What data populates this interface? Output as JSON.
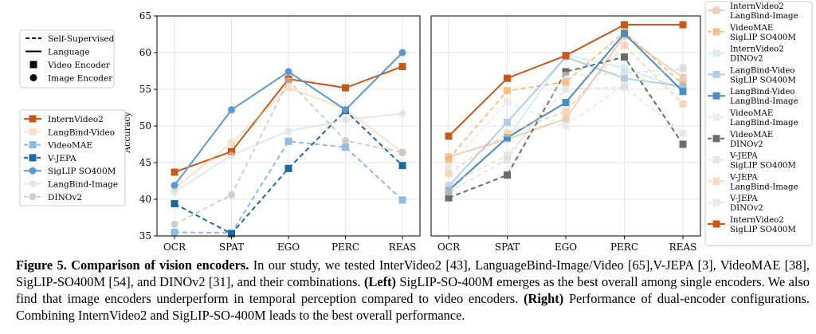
{
  "chart_data": [
    {
      "type": "line",
      "panel": "left",
      "categories": [
        "OCR",
        "SPAT",
        "EGO",
        "PERC",
        "REAS"
      ],
      "ylabel": "Accuracy",
      "ylim": [
        35,
        65
      ],
      "yticks": [
        35,
        40,
        45,
        50,
        55,
        60,
        65
      ],
      "grid": true,
      "style_legend": [
        {
          "label": "Self-Supervised",
          "kind": "dashed"
        },
        {
          "label": "Language",
          "kind": "solid"
        },
        {
          "label": "Video Encoder",
          "kind": "square"
        },
        {
          "label": "Image Encoder",
          "kind": "circle"
        }
      ],
      "series": [
        {
          "name": "InternVideo2",
          "values": [
            43.7,
            46.5,
            56.4,
            55.2,
            58.1
          ],
          "color": "#c8581a",
          "dash": false,
          "marker": "square",
          "alpha": 1.0
        },
        {
          "name": "LangBind-Video",
          "values": [
            41.5,
            47.7,
            55.2,
            52.3,
            46.4
          ],
          "color": "#f6be8a",
          "dash": false,
          "marker": "square",
          "alpha": 0.45
        },
        {
          "name": "VideoMAE",
          "values": [
            35.5,
            35.4,
            47.9,
            47.1,
            39.9
          ],
          "color": "#8fbbe2",
          "dash": true,
          "marker": "square",
          "alpha": 1.0
        },
        {
          "name": "V-JEPA",
          "values": [
            39.4,
            35.3,
            44.2,
            52.1,
            44.6
          ],
          "color": "#1b6a9d",
          "dash": true,
          "marker": "square",
          "alpha": 1.0
        },
        {
          "name": "SigLIP SO400M",
          "values": [
            41.9,
            52.2,
            57.4,
            52.2,
            60.0
          ],
          "color": "#5a9bcf",
          "dash": false,
          "marker": "circle",
          "alpha": 1.0
        },
        {
          "name": "LangBind-Image",
          "values": [
            41.0,
            46.0,
            49.3,
            50.8,
            51.7
          ],
          "color": "#d9d9d9",
          "dash": false,
          "marker": "circle",
          "alpha": 0.6
        },
        {
          "name": "DINOv2",
          "values": [
            36.6,
            40.6,
            56.2,
            48.0,
            46.4
          ],
          "color": "#bdbdbd",
          "dash": true,
          "marker": "circle",
          "alpha": 0.7
        }
      ]
    },
    {
      "type": "line",
      "panel": "right",
      "categories": [
        "OCR",
        "SPAT",
        "EGO",
        "PERC",
        "REAS"
      ],
      "ylim": [
        35,
        65
      ],
      "grid": true,
      "series": [
        {
          "name": "InternVideo2 LangBind-Image",
          "label_lines": [
            "InternVideo2",
            "LangBind-Image"
          ],
          "values": [
            45.8,
            48.2,
            51.0,
            62.3,
            56.6
          ],
          "color": "#e8a57d",
          "dash": false,
          "alpha": 0.55
        },
        {
          "name": "VideoMAE SigLIP SO400M",
          "label_lines": [
            "VideoMAE",
            "SigLIP SO400M"
          ],
          "values": [
            45.5,
            54.8,
            56.0,
            62.8,
            55.7
          ],
          "color": "#f6ad60",
          "dash": true,
          "alpha": 0.75
        },
        {
          "name": "InternVideo2 DINOv2",
          "label_lines": [
            "InternVideo2",
            "DINOv2"
          ],
          "values": [
            41.5,
            48.3,
            59.7,
            57.9,
            55.0
          ],
          "color": "#c5ddf2",
          "dash": false,
          "alpha": 0.6
        },
        {
          "name": "LangBind-Video SigLIP SO400M",
          "label_lines": [
            "LangBind-Video",
            "SigLIP SO400M"
          ],
          "values": [
            41.8,
            50.5,
            59.4,
            56.5,
            55.4
          ],
          "color": "#8fbbe2",
          "dash": false,
          "alpha": 0.7
        },
        {
          "name": "LangBind-Video LangBind-Image",
          "label_lines": [
            "LangBind-Video",
            "LangBind-Image"
          ],
          "values": [
            41.2,
            48.4,
            53.2,
            62.6,
            54.7
          ],
          "color": "#4a8cc7",
          "dash": false,
          "alpha": 1.0
        },
        {
          "name": "VideoMAE LangBind-Image",
          "label_lines": [
            "VideoMAE",
            "LangBind-Image"
          ],
          "values": [
            44.5,
            53.3,
            50.0,
            55.6,
            58.0
          ],
          "color": "#e0e0e0",
          "dash": true,
          "alpha": 0.6
        },
        {
          "name": "VideoMAE DINOv2",
          "label_lines": [
            "VideoMAE",
            "DINOv2"
          ],
          "values": [
            40.2,
            43.3,
            57.4,
            59.4,
            47.5
          ],
          "color": "#6b6b6b",
          "dash": true,
          "alpha": 1.0
        },
        {
          "name": "V-JEPA SigLIP SO400M",
          "label_lines": [
            "V-JEPA",
            "SigLIP SO400M"
          ],
          "values": [
            41.0,
            45.4,
            56.9,
            57.2,
            57.8
          ],
          "color": "#d6d6d6",
          "dash": true,
          "alpha": 0.6
        },
        {
          "name": "V-JEPA LangBind-Image",
          "label_lines": [
            "V-JEPA",
            "LangBind-Image"
          ],
          "values": [
            43.5,
            49.0,
            52.0,
            61.0,
            53.0
          ],
          "color": "#f8c596",
          "dash": true,
          "alpha": 0.65
        },
        {
          "name": "V-JEPA DINOv2",
          "label_lines": [
            "V-JEPA",
            "DINOv2"
          ],
          "values": [
            42.0,
            46.0,
            55.0,
            55.3,
            49.0
          ],
          "color": "#dcdcdc",
          "dash": true,
          "alpha": 0.6
        },
        {
          "name": "InternVideo2 SigLIP SO400M",
          "label_lines": [
            "InternVideo2",
            "SigLIP SO400M"
          ],
          "values": [
            48.6,
            56.5,
            59.6,
            63.8,
            63.8
          ],
          "color": "#c8581a",
          "dash": false,
          "alpha": 1.0
        }
      ]
    }
  ],
  "caption": {
    "label": "Figure 5.",
    "title": "Comparison of vision encoders.",
    "text_1": "In our study, we tested InterVideo2 [43], LanguageBind-Image/Video [65],V-JEPA [3], VideoMAE [38], SigLIP-SO400M [54], and DINOv2 [31], and their combinations.",
    "left_tag": "(Left)",
    "text_2": "SigLIP-SO-400M emerges as the best overall among single encoders. We also find that image encoders underperform in temporal perception compared to video encoders.",
    "right_tag": "(Right)",
    "text_3": "Performance of dual-encoder configurations. Combining InternVideo2 and SigLIP-SO-400M leads to the best overall performance."
  }
}
